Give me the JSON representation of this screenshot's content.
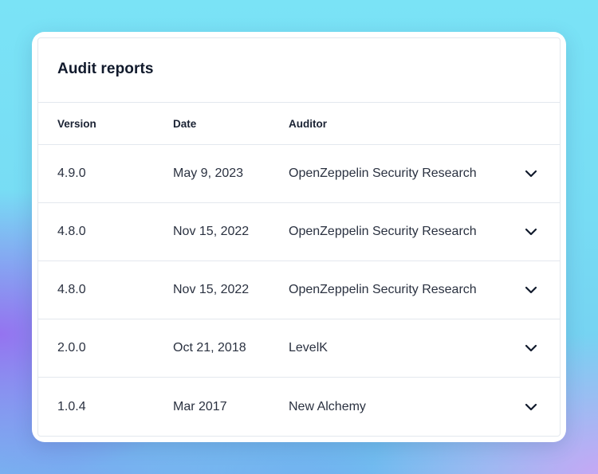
{
  "card": {
    "title": "Audit reports"
  },
  "table": {
    "columns": [
      "Version",
      "Date",
      "Auditor"
    ],
    "rows": [
      {
        "version": "4.9.0",
        "date": "May 9, 2023",
        "auditor": "OpenZeppelin Security Research"
      },
      {
        "version": "4.8.0",
        "date": "Nov 15, 2022",
        "auditor": "OpenZeppelin Security Research"
      },
      {
        "version": "4.8.0",
        "date": "Nov 15, 2022",
        "auditor": "OpenZeppelin Security Research"
      },
      {
        "version": "2.0.0",
        "date": "Oct 21, 2018",
        "auditor": "LevelK"
      },
      {
        "version": "1.0.4",
        "date": "Mar 2017",
        "auditor": "New Alchemy"
      }
    ]
  },
  "icons": {
    "row_toggle": "chevron-down-icon"
  },
  "colors": {
    "title_text": "#111a2c",
    "body_text": "#2a3140",
    "divider": "#e3e8ee",
    "background_top": "#7ae3f6",
    "background_accent": "#966ef0"
  }
}
